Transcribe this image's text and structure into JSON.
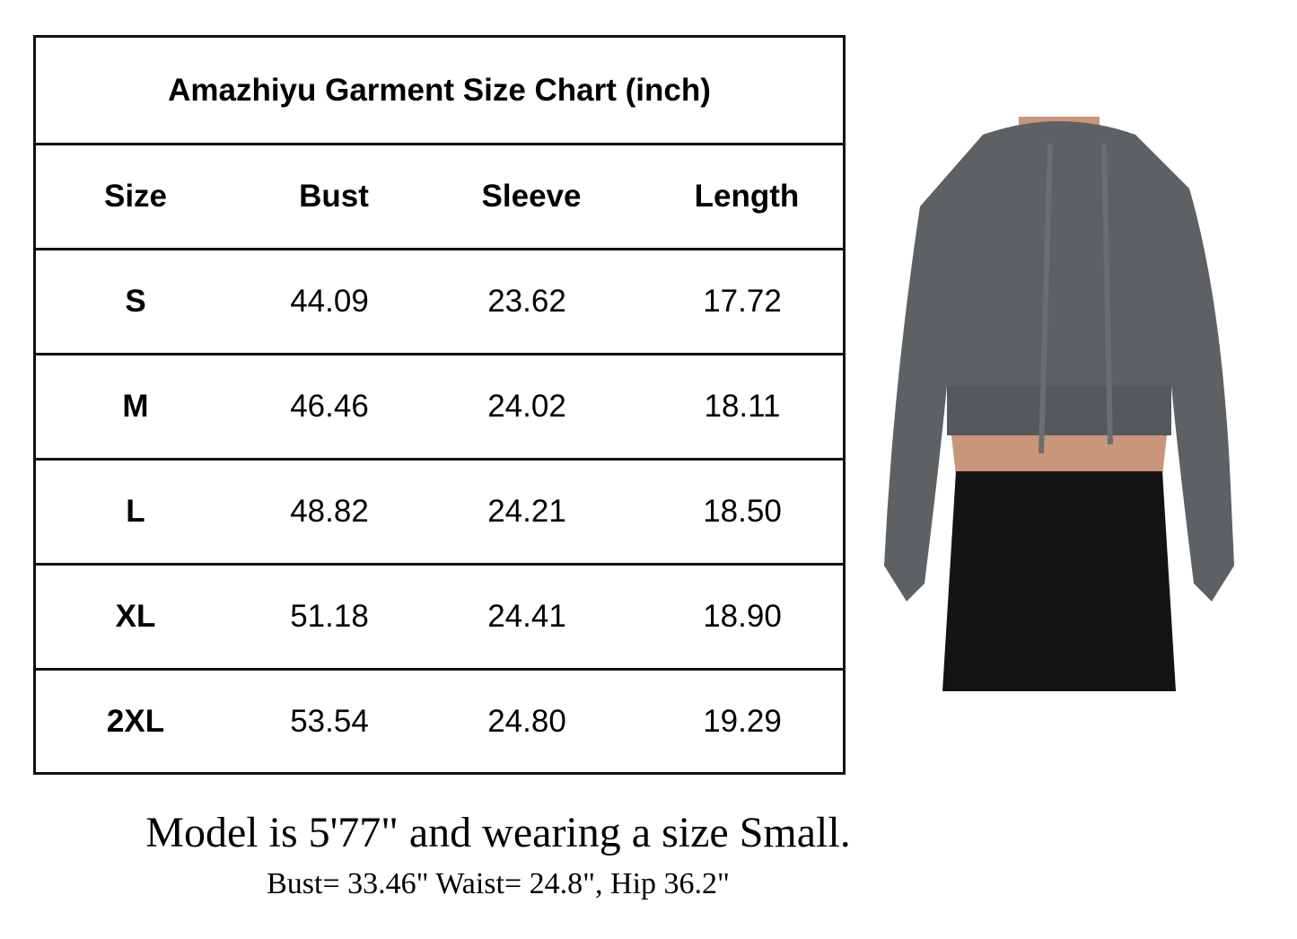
{
  "title": "Amazhiyu Garment Size Chart (inch)",
  "headers": [
    "Size",
    "Bust",
    "Sleeve",
    "Length"
  ],
  "rows": [
    [
      "S",
      "44.09",
      "23.62",
      "17.72"
    ],
    [
      "M",
      "46.46",
      "24.02",
      "18.11"
    ],
    [
      "L",
      "48.82",
      "24.21",
      "18.50"
    ],
    [
      "XL",
      "51.18",
      "24.41",
      "18.90"
    ],
    [
      "2XL",
      "53.54",
      "24.80",
      "19.29"
    ]
  ],
  "model_note": "Model is 5'77\" and wearing a size Small.",
  "model_measurements": "Bust= 33.46\" Waist= 24.8\", Hip 36.2\"",
  "colors": {
    "hoodie": "#5e6163",
    "pants": "#141414",
    "skin": "#c9967a"
  }
}
